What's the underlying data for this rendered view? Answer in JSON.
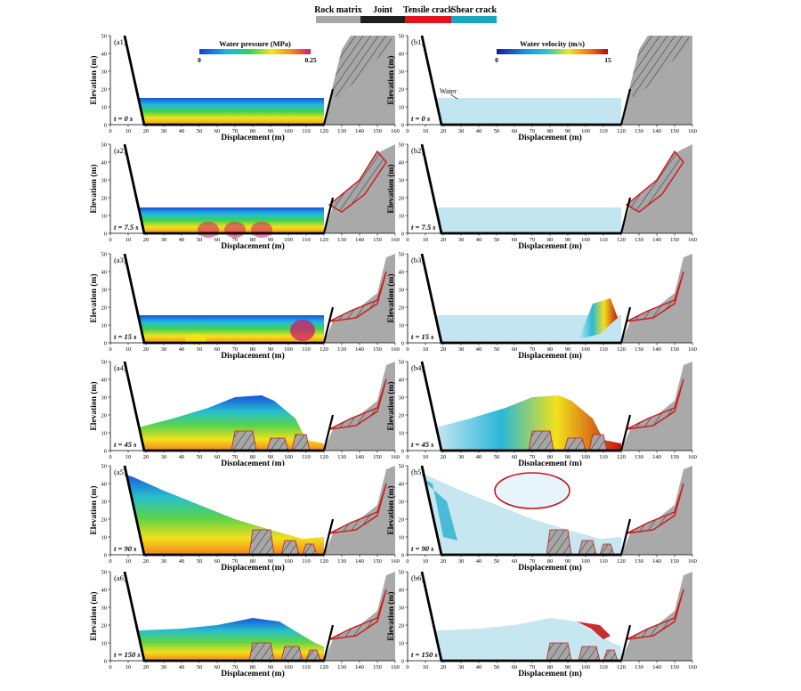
{
  "legend_top": {
    "items": [
      {
        "label": "Rock matrix",
        "color": "#a8a8a8"
      },
      {
        "label": "Joint",
        "color": "#1f1f1f"
      },
      {
        "label": "Tensile crack",
        "color": "#e0121b"
      },
      {
        "label": "Shear crack",
        "color": "#1aa7c2"
      }
    ]
  },
  "axes": {
    "xlabel": "Displacement (m)",
    "ylabel": "Elevation (m)",
    "xticks": [
      "0",
      "10",
      "20",
      "30",
      "40",
      "50",
      "60",
      "70",
      "80",
      "90",
      "100",
      "110",
      "120",
      "130",
      "140",
      "150",
      "160"
    ],
    "yticks": [
      "0",
      "10",
      "20",
      "30",
      "40",
      "50"
    ],
    "xlim": [
      0,
      160
    ],
    "ylim": [
      0,
      50
    ]
  },
  "colorbars": {
    "pressure": {
      "title": "Water pressure (MPa)",
      "min": "0",
      "max": "0.25"
    },
    "velocity": {
      "title": "Water velocity (m/s)",
      "min": "0",
      "max": "15"
    }
  },
  "water_label": "Water",
  "panels": [
    {
      "id": "a1",
      "time": "t = 0 s"
    },
    {
      "id": "b1",
      "time": "t = 0 s"
    },
    {
      "id": "a2",
      "time": "t = 7.5 s"
    },
    {
      "id": "b2",
      "time": "t = 7.5 s"
    },
    {
      "id": "a3",
      "time": "t = 15 s"
    },
    {
      "id": "b3",
      "time": "t = 15 s"
    },
    {
      "id": "a4",
      "time": "t = 45 s"
    },
    {
      "id": "b4",
      "time": "t = 45 s"
    },
    {
      "id": "a5",
      "time": "t = 90 s"
    },
    {
      "id": "b5",
      "time": "t = 90 s"
    },
    {
      "id": "a6",
      "time": "t = 150 s"
    },
    {
      "id": "b6",
      "time": "t = 150 s"
    }
  ]
}
